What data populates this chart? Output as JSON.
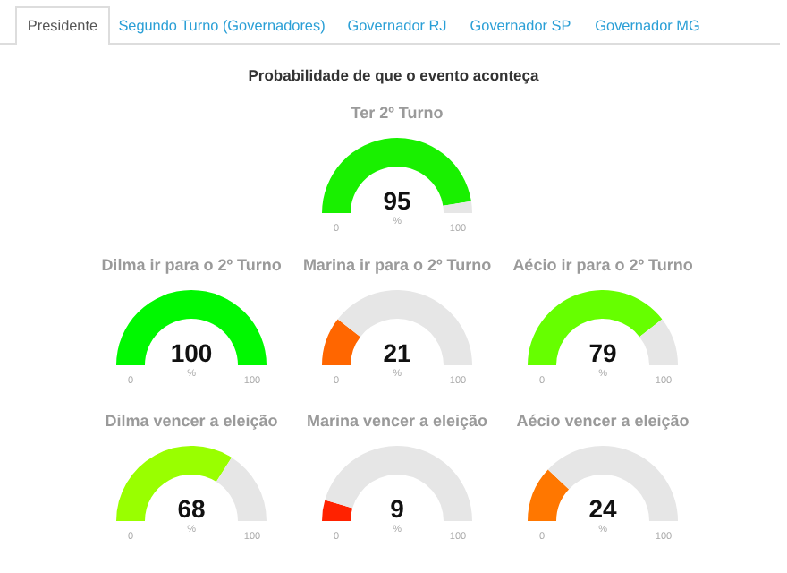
{
  "chart_data": [
    {
      "type": "other",
      "title": "Probabilidade de que o evento aconteça",
      "annotations": [
        "Presidente",
        "Segundo Turno (Governadores)",
        "Governador RJ",
        "Governador SP",
        "Governador MG"
      ]
    },
    {
      "type": "other",
      "title": "Ter 2º Turno",
      "values": [
        95
      ],
      "colors": [
        "#19f000"
      ],
      "value_labels": [
        "95"
      ],
      "annotations": [
        "0",
        "%",
        "100"
      ]
    },
    {
      "type": "other",
      "title": "Dilma ir para o 2º Turno",
      "values": [
        100
      ],
      "colors": [
        "#00f800"
      ],
      "value_labels": [
        "100"
      ],
      "annotations": [
        "0",
        "%",
        "100"
      ]
    },
    {
      "type": "other",
      "title": "Marina ir para o 2º Turno",
      "values": [
        21
      ],
      "colors": [
        "#ff6600"
      ],
      "value_labels": [
        "21"
      ],
      "annotations": [
        "0",
        "%",
        "100"
      ]
    },
    {
      "type": "other",
      "title": "Aécio ir para o 2º Turno",
      "values": [
        79
      ],
      "colors": [
        "#66ff00"
      ],
      "value_labels": [
        "79"
      ],
      "annotations": [
        "0",
        "%",
        "100"
      ]
    },
    {
      "type": "other",
      "title": "Dilma vencer a eleição",
      "values": [
        68
      ],
      "colors": [
        "#99ff00"
      ],
      "value_labels": [
        "68"
      ],
      "annotations": [
        "0",
        "%",
        "100"
      ]
    },
    {
      "type": "other",
      "title": "Marina vencer a eleição",
      "values": [
        9
      ],
      "colors": [
        "#ff2200"
      ],
      "value_labels": [
        "9"
      ],
      "annotations": [
        "0",
        "%",
        "100"
      ]
    },
    {
      "type": "other",
      "title": "Aécio vencer a eleição",
      "values": [
        24
      ],
      "colors": [
        "#ff7700"
      ],
      "value_labels": [
        "24"
      ],
      "annotations": [
        "0",
        "%",
        "100"
      ]
    }
  ]
}
